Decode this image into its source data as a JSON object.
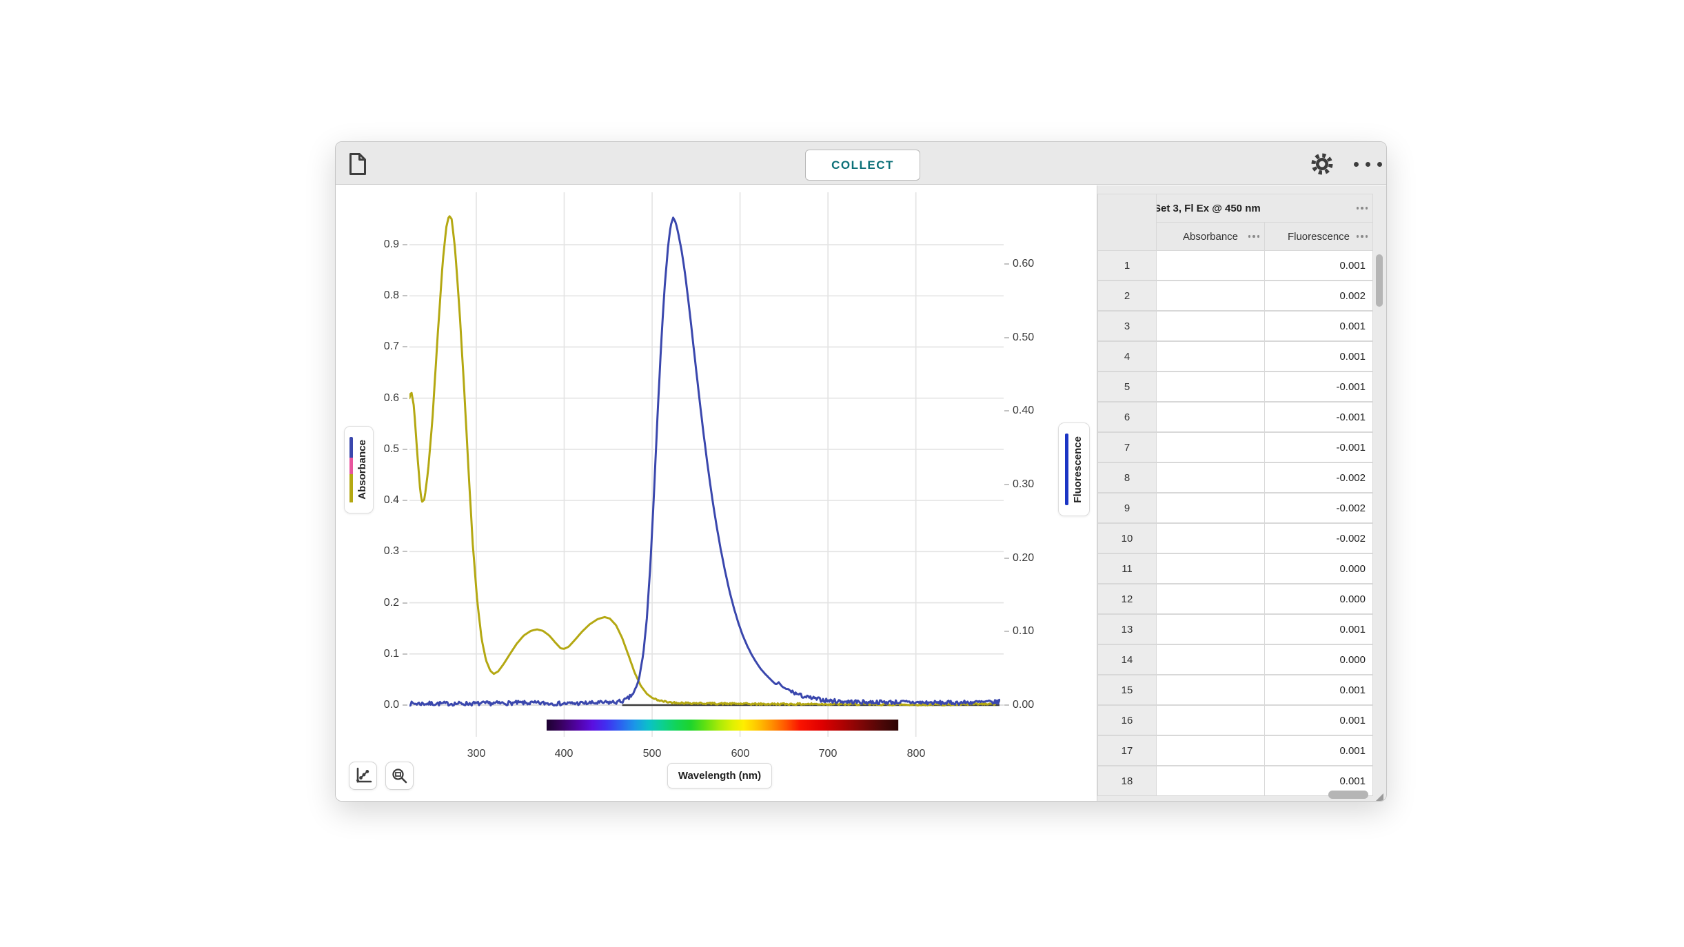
{
  "toolbar": {
    "collect_label": "COLLECT"
  },
  "chart": {
    "x_axis_label": "Wavelength (nm)",
    "x_ticks": [
      "300",
      "400",
      "500",
      "600",
      "700",
      "800"
    ],
    "left_axis": {
      "label": "Absorbance",
      "ticks": [
        "0.0",
        "0.1",
        "0.2",
        "0.3",
        "0.4",
        "0.5",
        "0.6",
        "0.7",
        "0.8",
        "0.9"
      ],
      "legend_colors": [
        "#3a47ad",
        "#e8559d",
        "#b4a812"
      ]
    },
    "right_axis": {
      "label": "Fluorescence",
      "ticks": [
        "0.00",
        "0.10",
        "0.20",
        "0.30",
        "0.40",
        "0.50",
        "0.60"
      ],
      "legend_colors": [
        "#1b35c4"
      ]
    }
  },
  "chart_data": {
    "type": "line",
    "title": "",
    "xlabel": "Wavelength (nm)",
    "x_range_nm": [
      224,
      900
    ],
    "grid": true,
    "left_ylabel": "Absorbance",
    "left_ylim": [
      0,
      0.96
    ],
    "right_ylabel": "Fluorescence",
    "right_ylim": [
      0,
      0.67
    ],
    "series": [
      {
        "name": "Absorbance",
        "axis": "left",
        "color": "#b4a812",
        "points": [
          [
            224,
            0.6
          ],
          [
            226,
            0.614
          ],
          [
            229,
            0.585
          ],
          [
            233,
            0.49
          ],
          [
            236,
            0.425
          ],
          [
            238,
            0.397
          ],
          [
            241,
            0.402
          ],
          [
            245,
            0.455
          ],
          [
            250,
            0.555
          ],
          [
            256,
            0.72
          ],
          [
            262,
            0.87
          ],
          [
            266,
            0.935
          ],
          [
            269,
            0.957
          ],
          [
            272,
            0.95
          ],
          [
            276,
            0.89
          ],
          [
            281,
            0.77
          ],
          [
            286,
            0.625
          ],
          [
            291,
            0.465
          ],
          [
            296,
            0.315
          ],
          [
            301,
            0.205
          ],
          [
            306,
            0.13
          ],
          [
            311,
            0.088
          ],
          [
            316,
            0.067
          ],
          [
            320,
            0.061
          ],
          [
            325,
            0.066
          ],
          [
            331,
            0.08
          ],
          [
            338,
            0.099
          ],
          [
            346,
            0.12
          ],
          [
            354,
            0.136
          ],
          [
            362,
            0.145
          ],
          [
            369,
            0.148
          ],
          [
            376,
            0.145
          ],
          [
            383,
            0.136
          ],
          [
            390,
            0.122
          ],
          [
            396,
            0.111
          ],
          [
            400,
            0.11
          ],
          [
            405,
            0.114
          ],
          [
            412,
            0.127
          ],
          [
            420,
            0.143
          ],
          [
            429,
            0.158
          ],
          [
            438,
            0.168
          ],
          [
            446,
            0.172
          ],
          [
            452,
            0.169
          ],
          [
            459,
            0.156
          ],
          [
            466,
            0.131
          ],
          [
            473,
            0.098
          ],
          [
            480,
            0.064
          ],
          [
            487,
            0.038
          ],
          [
            494,
            0.022
          ],
          [
            501,
            0.013
          ],
          [
            510,
            0.008
          ],
          [
            522,
            0.005
          ],
          [
            540,
            0.004
          ],
          [
            570,
            0.003
          ],
          [
            620,
            0.002
          ],
          [
            700,
            0.002
          ],
          [
            780,
            0.001
          ],
          [
            850,
            0.001
          ],
          [
            890,
            0.002
          ],
          [
            896,
            0.009
          ]
        ]
      },
      {
        "name": "Fluorescence",
        "axis": "right",
        "color": "#3a47ad",
        "points": [
          [
            224,
            0.002
          ],
          [
            260,
            0.002
          ],
          [
            300,
            0.002
          ],
          [
            350,
            0.003
          ],
          [
            400,
            0.002
          ],
          [
            440,
            0.003
          ],
          [
            460,
            0.004
          ],
          [
            468,
            0.006
          ],
          [
            474,
            0.01
          ],
          [
            480,
            0.018
          ],
          [
            485,
            0.035
          ],
          [
            490,
            0.07
          ],
          [
            494,
            0.118
          ],
          [
            498,
            0.19
          ],
          [
            502,
            0.285
          ],
          [
            506,
            0.39
          ],
          [
            510,
            0.485
          ],
          [
            514,
            0.565
          ],
          [
            518,
            0.622
          ],
          [
            521,
            0.652
          ],
          [
            524,
            0.663
          ],
          [
            527,
            0.656
          ],
          [
            530,
            0.64
          ],
          [
            534,
            0.615
          ],
          [
            538,
            0.582
          ],
          [
            543,
            0.532
          ],
          [
            548,
            0.478
          ],
          [
            553,
            0.425
          ],
          [
            558,
            0.374
          ],
          [
            563,
            0.327
          ],
          [
            568,
            0.284
          ],
          [
            573,
            0.246
          ],
          [
            578,
            0.212
          ],
          [
            583,
            0.182
          ],
          [
            588,
            0.155
          ],
          [
            593,
            0.132
          ],
          [
            598,
            0.112
          ],
          [
            603,
            0.095
          ],
          [
            608,
            0.081
          ],
          [
            613,
            0.069
          ],
          [
            618,
            0.059
          ],
          [
            623,
            0.05
          ],
          [
            628,
            0.043
          ],
          [
            633,
            0.037
          ],
          [
            638,
            0.031
          ],
          [
            641,
            0.028
          ],
          [
            644,
            0.031
          ],
          [
            648,
            0.025
          ],
          [
            654,
            0.021
          ],
          [
            661,
            0.017
          ],
          [
            669,
            0.013
          ],
          [
            678,
            0.01
          ],
          [
            688,
            0.008
          ],
          [
            700,
            0.006
          ],
          [
            715,
            0.005
          ],
          [
            740,
            0.004
          ],
          [
            780,
            0.004
          ],
          [
            830,
            0.003
          ],
          [
            880,
            0.004
          ],
          [
            893,
            0.004
          ],
          [
            896,
            0.007
          ]
        ]
      }
    ],
    "zero_line_nm": [
      466,
      895
    ],
    "spectrum_bar": {
      "from_nm": 380,
      "to_nm": 780,
      "colors": [
        [
          0,
          "#1c0130"
        ],
        [
          0.04,
          "#38015e"
        ],
        [
          0.09,
          "#5202a8"
        ],
        [
          0.13,
          "#5a0fe0"
        ],
        [
          0.17,
          "#4030f0"
        ],
        [
          0.21,
          "#2b62f0"
        ],
        [
          0.25,
          "#1b96e8"
        ],
        [
          0.29,
          "#0bc0c8"
        ],
        [
          0.33,
          "#0cd08e"
        ],
        [
          0.37,
          "#12d455"
        ],
        [
          0.41,
          "#1ed42c"
        ],
        [
          0.45,
          "#5fe012"
        ],
        [
          0.49,
          "#a8ea08"
        ],
        [
          0.53,
          "#e0f002"
        ],
        [
          0.56,
          "#ffee00"
        ],
        [
          0.6,
          "#ffc400"
        ],
        [
          0.64,
          "#ff9000"
        ],
        [
          0.68,
          "#ff5500"
        ],
        [
          0.72,
          "#fa1400"
        ],
        [
          0.78,
          "#e00000"
        ],
        [
          0.84,
          "#b00202"
        ],
        [
          0.9,
          "#7a0606"
        ],
        [
          0.96,
          "#470707"
        ],
        [
          1,
          "#2d0404"
        ]
      ]
    }
  },
  "table": {
    "group_header": "Set 3, Fl Ex @ 450 nm",
    "columns": [
      "Absorbance",
      "Fluorescence"
    ],
    "rows": [
      {
        "n": "1",
        "absorbance": "",
        "fluorescence": "0.001"
      },
      {
        "n": "2",
        "absorbance": "",
        "fluorescence": "0.002"
      },
      {
        "n": "3",
        "absorbance": "",
        "fluorescence": "0.001"
      },
      {
        "n": "4",
        "absorbance": "",
        "fluorescence": "0.001"
      },
      {
        "n": "5",
        "absorbance": "",
        "fluorescence": "-0.001"
      },
      {
        "n": "6",
        "absorbance": "",
        "fluorescence": "-0.001"
      },
      {
        "n": "7",
        "absorbance": "",
        "fluorescence": "-0.001"
      },
      {
        "n": "8",
        "absorbance": "",
        "fluorescence": "-0.002"
      },
      {
        "n": "9",
        "absorbance": "",
        "fluorescence": "-0.002"
      },
      {
        "n": "10",
        "absorbance": "",
        "fluorescence": "-0.002"
      },
      {
        "n": "11",
        "absorbance": "",
        "fluorescence": "0.000"
      },
      {
        "n": "12",
        "absorbance": "",
        "fluorescence": "0.000"
      },
      {
        "n": "13",
        "absorbance": "",
        "fluorescence": "0.001"
      },
      {
        "n": "14",
        "absorbance": "",
        "fluorescence": "0.000"
      },
      {
        "n": "15",
        "absorbance": "",
        "fluorescence": "0.001"
      },
      {
        "n": "16",
        "absorbance": "",
        "fluorescence": "0.001"
      },
      {
        "n": "17",
        "absorbance": "",
        "fluorescence": "0.001"
      },
      {
        "n": "18",
        "absorbance": "",
        "fluorescence": "0.001"
      }
    ]
  },
  "colors": {
    "accent_teal": "#0c7078",
    "absorbance_line": "#b4a812",
    "fluorescence_line": "#3a47ad",
    "legend_pink": "#e8559d",
    "grid": "#e3e3e3",
    "toolbar_bg": "#e9e9e9"
  }
}
